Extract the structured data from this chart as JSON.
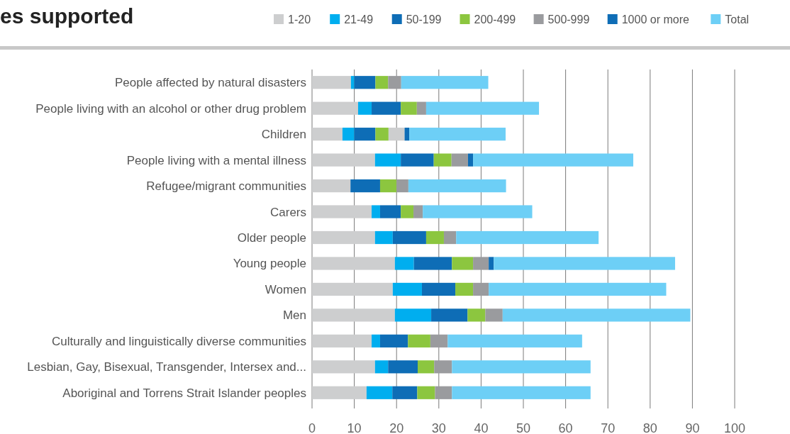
{
  "chart_data": {
    "type": "bar",
    "orientation": "horizontal",
    "stacked": true,
    "title": "es supported",
    "categories": [
      "People affected by natural disasters",
      "People living with an alcohol or other drug problem",
      "Children",
      "People living with a mental illness",
      "Refugee/migrant communities",
      "Carers",
      "Older people",
      "Young people",
      "Women",
      "Men",
      "Culturally and linguistically diverse communities",
      "Lesbian, Gay, Bisexual, Transgender, Intersex and...",
      "Aboriginal and Torrens Strait Islander peoples"
    ],
    "series": [
      {
        "name": "1-20",
        "color": "#cdcecf",
        "values": [
          9.2,
          10.9,
          7.2,
          14.9,
          9.1,
          14.1,
          14.9,
          19.6,
          19.1,
          19.6,
          14.1,
          14.9,
          12.9
        ]
      },
      {
        "name": "21-49",
        "color": "#00aeef",
        "values": [
          0.8,
          3.2,
          2.8,
          6.1,
          null,
          2.0,
          4.2,
          4.5,
          6.9,
          8.6,
          2.0,
          3.1,
          6.1
        ]
      },
      {
        "name": "50-199",
        "color": "#0e6db6",
        "values": [
          5.0,
          6.9,
          5.0,
          7.8,
          7.0,
          4.9,
          7.9,
          9.0,
          7.9,
          8.6,
          6.6,
          7.0,
          5.9
        ]
      },
      {
        "name": "200-499",
        "color": "#8cc63f",
        "values": [
          3.0,
          3.8,
          3.1,
          4.2,
          3.9,
          3.0,
          4.2,
          5.0,
          4.2,
          4.2,
          5.3,
          3.9,
          4.2
        ]
      },
      {
        "name": "500-999",
        "color": "#9a9b9e",
        "colors": [
          "#9a9b9e",
          "#9a9b9e",
          "#cdcecf",
          "#9a9b9e",
          "#9a9b9e",
          "#9a9b9e",
          "#9a9b9e",
          "#9a9b9e",
          "#9a9b9e",
          "#9a9b9e",
          "#9a9b9e",
          "#9a9b9e",
          "#9a9b9e"
        ],
        "values": [
          3.1,
          2.2,
          3.8,
          3.9,
          2.8,
          2.2,
          2.9,
          3.7,
          3.7,
          4.1,
          4.1,
          4.2,
          4.0
        ]
      },
      {
        "name": "1000 or more",
        "color": "#0e6db6",
        "values": [
          null,
          null,
          1.1,
          1.2,
          null,
          null,
          null,
          1.2,
          null,
          null,
          null,
          null,
          null
        ]
      },
      {
        "name": "Total",
        "color": "#6dcff6",
        "values": [
          20.6,
          26.7,
          22.8,
          37.9,
          23.1,
          25.9,
          33.7,
          42.9,
          42.0,
          44.4,
          31.8,
          32.8,
          32.8
        ]
      }
    ],
    "xlim": [
      0,
      100
    ],
    "xticks": [
      0,
      10,
      20,
      30,
      40,
      50,
      60,
      70,
      80,
      90,
      100
    ],
    "grid": "x",
    "legend": "top"
  }
}
